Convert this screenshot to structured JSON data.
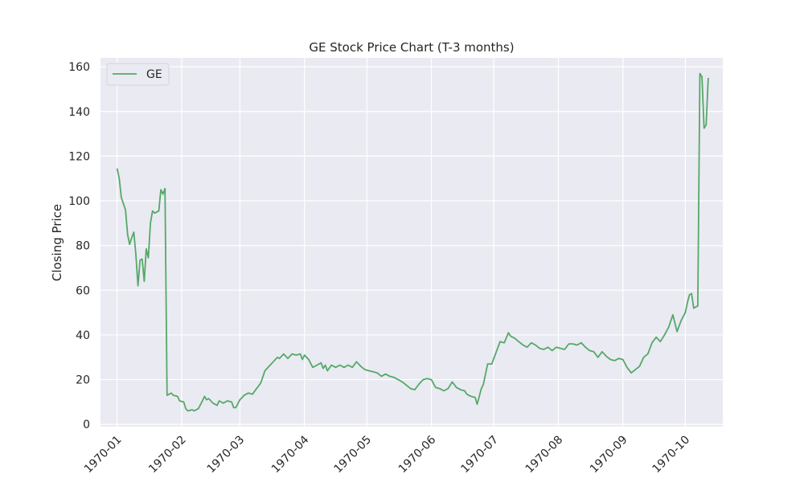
{
  "chart_data": {
    "type": "line",
    "title": "GE Stock Price Chart (T-3 months)",
    "xlabel": "",
    "ylabel": "Closing Price",
    "x_ticks": [
      "1970-01",
      "1970-02",
      "1970-03",
      "1970-04",
      "1970-05",
      "1970-06",
      "1970-07",
      "1970-08",
      "1970-09",
      "1970-10"
    ],
    "y_ticks": [
      0,
      20,
      40,
      60,
      80,
      100,
      120,
      140,
      160
    ],
    "ylim": [
      -1,
      164
    ],
    "xlim": [
      "1969-12-24",
      "1970-10-19"
    ],
    "grid": true,
    "legend_position": "upper-left",
    "background": "#eaeaf2",
    "series": [
      {
        "name": "GE",
        "color": "#55a868",
        "points": [
          [
            "1970-01-01",
            114.5
          ],
          [
            "1970-01-02",
            110.0
          ],
          [
            "1970-01-03",
            101.5
          ],
          [
            "1970-01-05",
            96.0
          ],
          [
            "1970-01-06",
            85.0
          ],
          [
            "1970-01-07",
            80.5
          ],
          [
            "1970-01-08",
            83.5
          ],
          [
            "1970-01-09",
            86.0
          ],
          [
            "1970-01-10",
            76.0
          ],
          [
            "1970-01-11",
            62.0
          ],
          [
            "1970-01-12",
            73.5
          ],
          [
            "1970-01-13",
            74.0
          ],
          [
            "1970-01-14",
            64.0
          ],
          [
            "1970-01-15",
            78.5
          ],
          [
            "1970-01-16",
            74.5
          ],
          [
            "1970-01-17",
            90.0
          ],
          [
            "1970-01-18",
            95.5
          ],
          [
            "1970-01-19",
            94.5
          ],
          [
            "1970-01-21",
            95.5
          ],
          [
            "1970-01-22",
            105.0
          ],
          [
            "1970-01-23",
            103.0
          ],
          [
            "1970-01-24",
            105.5
          ],
          [
            "1970-01-25",
            13.0
          ],
          [
            "1970-01-27",
            14.0
          ],
          [
            "1970-01-28",
            13.0
          ],
          [
            "1970-01-30",
            12.5
          ],
          [
            "1970-01-31",
            10.5
          ],
          [
            "1970-02-02",
            10.0
          ],
          [
            "1970-02-03",
            7.0
          ],
          [
            "1970-02-04",
            6.0
          ],
          [
            "1970-02-06",
            6.5
          ],
          [
            "1970-02-07",
            6.0
          ],
          [
            "1970-02-09",
            7.0
          ],
          [
            "1970-02-11",
            10.5
          ],
          [
            "1970-02-12",
            12.5
          ],
          [
            "1970-02-13",
            11.0
          ],
          [
            "1970-02-14",
            11.5
          ],
          [
            "1970-02-16",
            9.5
          ],
          [
            "1970-02-18",
            8.5
          ],
          [
            "1970-02-19",
            10.5
          ],
          [
            "1970-02-20",
            10.0
          ],
          [
            "1970-02-21",
            9.5
          ],
          [
            "1970-02-23",
            10.5
          ],
          [
            "1970-02-25",
            10.0
          ],
          [
            "1970-02-26",
            7.5
          ],
          [
            "1970-02-27",
            7.5
          ],
          [
            "1970-03-01",
            11.0
          ],
          [
            "1970-03-03",
            13.0
          ],
          [
            "1970-03-05",
            14.0
          ],
          [
            "1970-03-07",
            13.5
          ],
          [
            "1970-03-09",
            16.0
          ],
          [
            "1970-03-11",
            18.5
          ],
          [
            "1970-03-13",
            24.0
          ],
          [
            "1970-03-15",
            26.0
          ],
          [
            "1970-03-17",
            28.0
          ],
          [
            "1970-03-19",
            30.0
          ],
          [
            "1970-03-20",
            29.5
          ],
          [
            "1970-03-22",
            31.5
          ],
          [
            "1970-03-24",
            29.5
          ],
          [
            "1970-03-26",
            31.5
          ],
          [
            "1970-03-28",
            31.0
          ],
          [
            "1970-03-30",
            31.5
          ],
          [
            "1970-03-31",
            29.0
          ],
          [
            "1970-04-01",
            31.0
          ],
          [
            "1970-04-03",
            29.0
          ],
          [
            "1970-04-05",
            25.5
          ],
          [
            "1970-04-07",
            26.5
          ],
          [
            "1970-04-09",
            27.5
          ],
          [
            "1970-04-10",
            25.0
          ],
          [
            "1970-04-11",
            26.5
          ],
          [
            "1970-04-12",
            24.0
          ],
          [
            "1970-04-14",
            26.5
          ],
          [
            "1970-04-16",
            25.5
          ],
          [
            "1970-04-18",
            26.5
          ],
          [
            "1970-04-20",
            25.5
          ],
          [
            "1970-04-22",
            26.5
          ],
          [
            "1970-04-24",
            25.5
          ],
          [
            "1970-04-26",
            28.0
          ],
          [
            "1970-04-28",
            26.0
          ],
          [
            "1970-04-30",
            24.5
          ],
          [
            "1970-05-02",
            24.0
          ],
          [
            "1970-05-04",
            23.5
          ],
          [
            "1970-05-06",
            23.0
          ],
          [
            "1970-05-08",
            21.5
          ],
          [
            "1970-05-10",
            22.5
          ],
          [
            "1970-05-12",
            21.5
          ],
          [
            "1970-05-14",
            21.0
          ],
          [
            "1970-05-16",
            20.0
          ],
          [
            "1970-05-18",
            19.0
          ],
          [
            "1970-05-20",
            17.5
          ],
          [
            "1970-05-22",
            16.0
          ],
          [
            "1970-05-24",
            15.5
          ],
          [
            "1970-05-26",
            18.0
          ],
          [
            "1970-05-28",
            20.0
          ],
          [
            "1970-05-30",
            20.5
          ],
          [
            "1970-06-01",
            20.0
          ],
          [
            "1970-06-03",
            16.5
          ],
          [
            "1970-06-05",
            16.0
          ],
          [
            "1970-06-07",
            15.0
          ],
          [
            "1970-06-09",
            16.0
          ],
          [
            "1970-06-11",
            19.0
          ],
          [
            "1970-06-13",
            16.5
          ],
          [
            "1970-06-15",
            15.5
          ],
          [
            "1970-06-17",
            15.0
          ],
          [
            "1970-06-18",
            13.5
          ],
          [
            "1970-06-20",
            12.5
          ],
          [
            "1970-06-22",
            12.0
          ],
          [
            "1970-06-23",
            9.0
          ],
          [
            "1970-06-25",
            16.0
          ],
          [
            "1970-06-26",
            18.0
          ],
          [
            "1970-06-28",
            27.0
          ],
          [
            "1970-06-30",
            27.0
          ],
          [
            "1970-07-02",
            32.0
          ],
          [
            "1970-07-04",
            37.0
          ],
          [
            "1970-07-06",
            36.5
          ],
          [
            "1970-07-08",
            41.0
          ],
          [
            "1970-07-09",
            39.5
          ],
          [
            "1970-07-11",
            38.5
          ],
          [
            "1970-07-13",
            37.0
          ],
          [
            "1970-07-15",
            35.5
          ],
          [
            "1970-07-17",
            34.5
          ],
          [
            "1970-07-19",
            36.5
          ],
          [
            "1970-07-21",
            35.5
          ],
          [
            "1970-07-23",
            34.0
          ],
          [
            "1970-07-25",
            33.5
          ],
          [
            "1970-07-27",
            34.5
          ],
          [
            "1970-07-29",
            33.0
          ],
          [
            "1970-07-31",
            34.5
          ],
          [
            "1970-08-02",
            34.0
          ],
          [
            "1970-08-04",
            33.5
          ],
          [
            "1970-08-06",
            36.0
          ],
          [
            "1970-08-08",
            36.0
          ],
          [
            "1970-08-10",
            35.5
          ],
          [
            "1970-08-12",
            36.5
          ],
          [
            "1970-08-14",
            34.5
          ],
          [
            "1970-08-16",
            33.0
          ],
          [
            "1970-08-18",
            32.5
          ],
          [
            "1970-08-20",
            30.0
          ],
          [
            "1970-08-22",
            32.5
          ],
          [
            "1970-08-24",
            30.5
          ],
          [
            "1970-08-26",
            29.0
          ],
          [
            "1970-08-28",
            28.5
          ],
          [
            "1970-08-30",
            29.5
          ],
          [
            "1970-09-01",
            29.0
          ],
          [
            "1970-09-03",
            25.5
          ],
          [
            "1970-09-05",
            23.0
          ],
          [
            "1970-09-07",
            24.5
          ],
          [
            "1970-09-09",
            26.0
          ],
          [
            "1970-09-11",
            30.0
          ],
          [
            "1970-09-13",
            31.5
          ],
          [
            "1970-09-15",
            36.5
          ],
          [
            "1970-09-17",
            39.0
          ],
          [
            "1970-09-19",
            37.0
          ],
          [
            "1970-09-21",
            40.0
          ],
          [
            "1970-09-23",
            43.5
          ],
          [
            "1970-09-25",
            49.0
          ],
          [
            "1970-09-27",
            41.5
          ],
          [
            "1970-09-29",
            46.5
          ],
          [
            "1970-10-01",
            50.0
          ],
          [
            "1970-10-02",
            54.5
          ],
          [
            "1970-10-03",
            58.0
          ],
          [
            "1970-10-04",
            58.5
          ],
          [
            "1970-10-05",
            52.0
          ],
          [
            "1970-10-06",
            52.5
          ],
          [
            "1970-10-07",
            53.0
          ],
          [
            "1970-10-08",
            157.0
          ],
          [
            "1970-10-09",
            155.5
          ],
          [
            "1970-10-10",
            132.5
          ],
          [
            "1970-10-11",
            134.0
          ],
          [
            "1970-10-12",
            155.0
          ]
        ]
      }
    ]
  }
}
